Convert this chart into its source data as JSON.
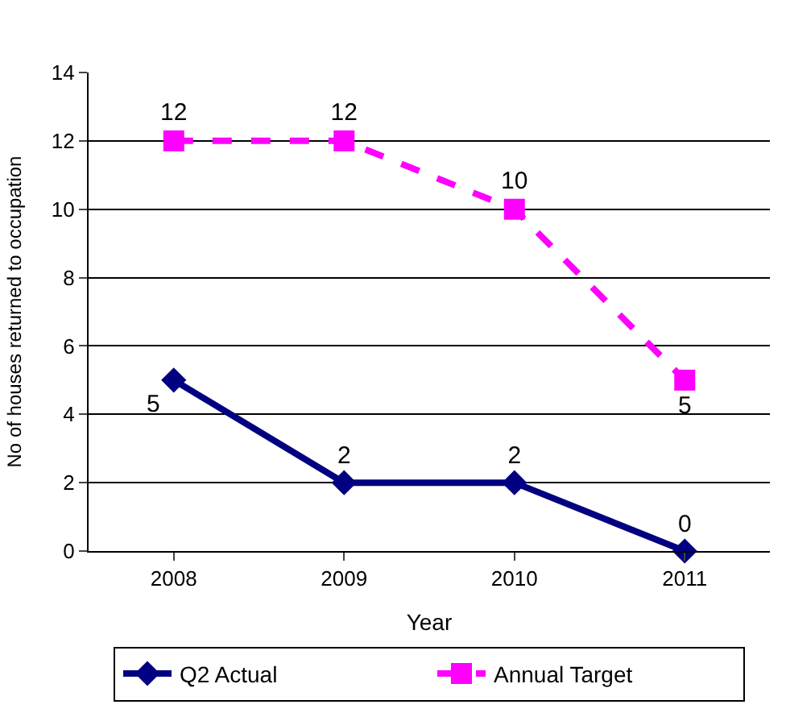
{
  "chart_data": {
    "type": "line",
    "xlabel": "Year",
    "ylabel": "No of houses returned to occupation",
    "categories": [
      "2008",
      "2009",
      "2010",
      "2011"
    ],
    "series": [
      {
        "name": "Q2 Actual",
        "color": "#000080",
        "values": [
          5,
          2,
          2,
          0
        ],
        "marker": "diamond",
        "line_style": "solid"
      },
      {
        "name": "Annual Target",
        "color": "#ff00ff",
        "values": [
          12,
          12,
          10,
          5
        ],
        "marker": "square",
        "line_style": "dashed"
      }
    ],
    "ylim": [
      0,
      14
    ],
    "yticks": [
      0,
      2,
      4,
      6,
      8,
      10,
      12,
      14
    ],
    "grid": "y",
    "legend": "bottom",
    "data_labels": true
  }
}
